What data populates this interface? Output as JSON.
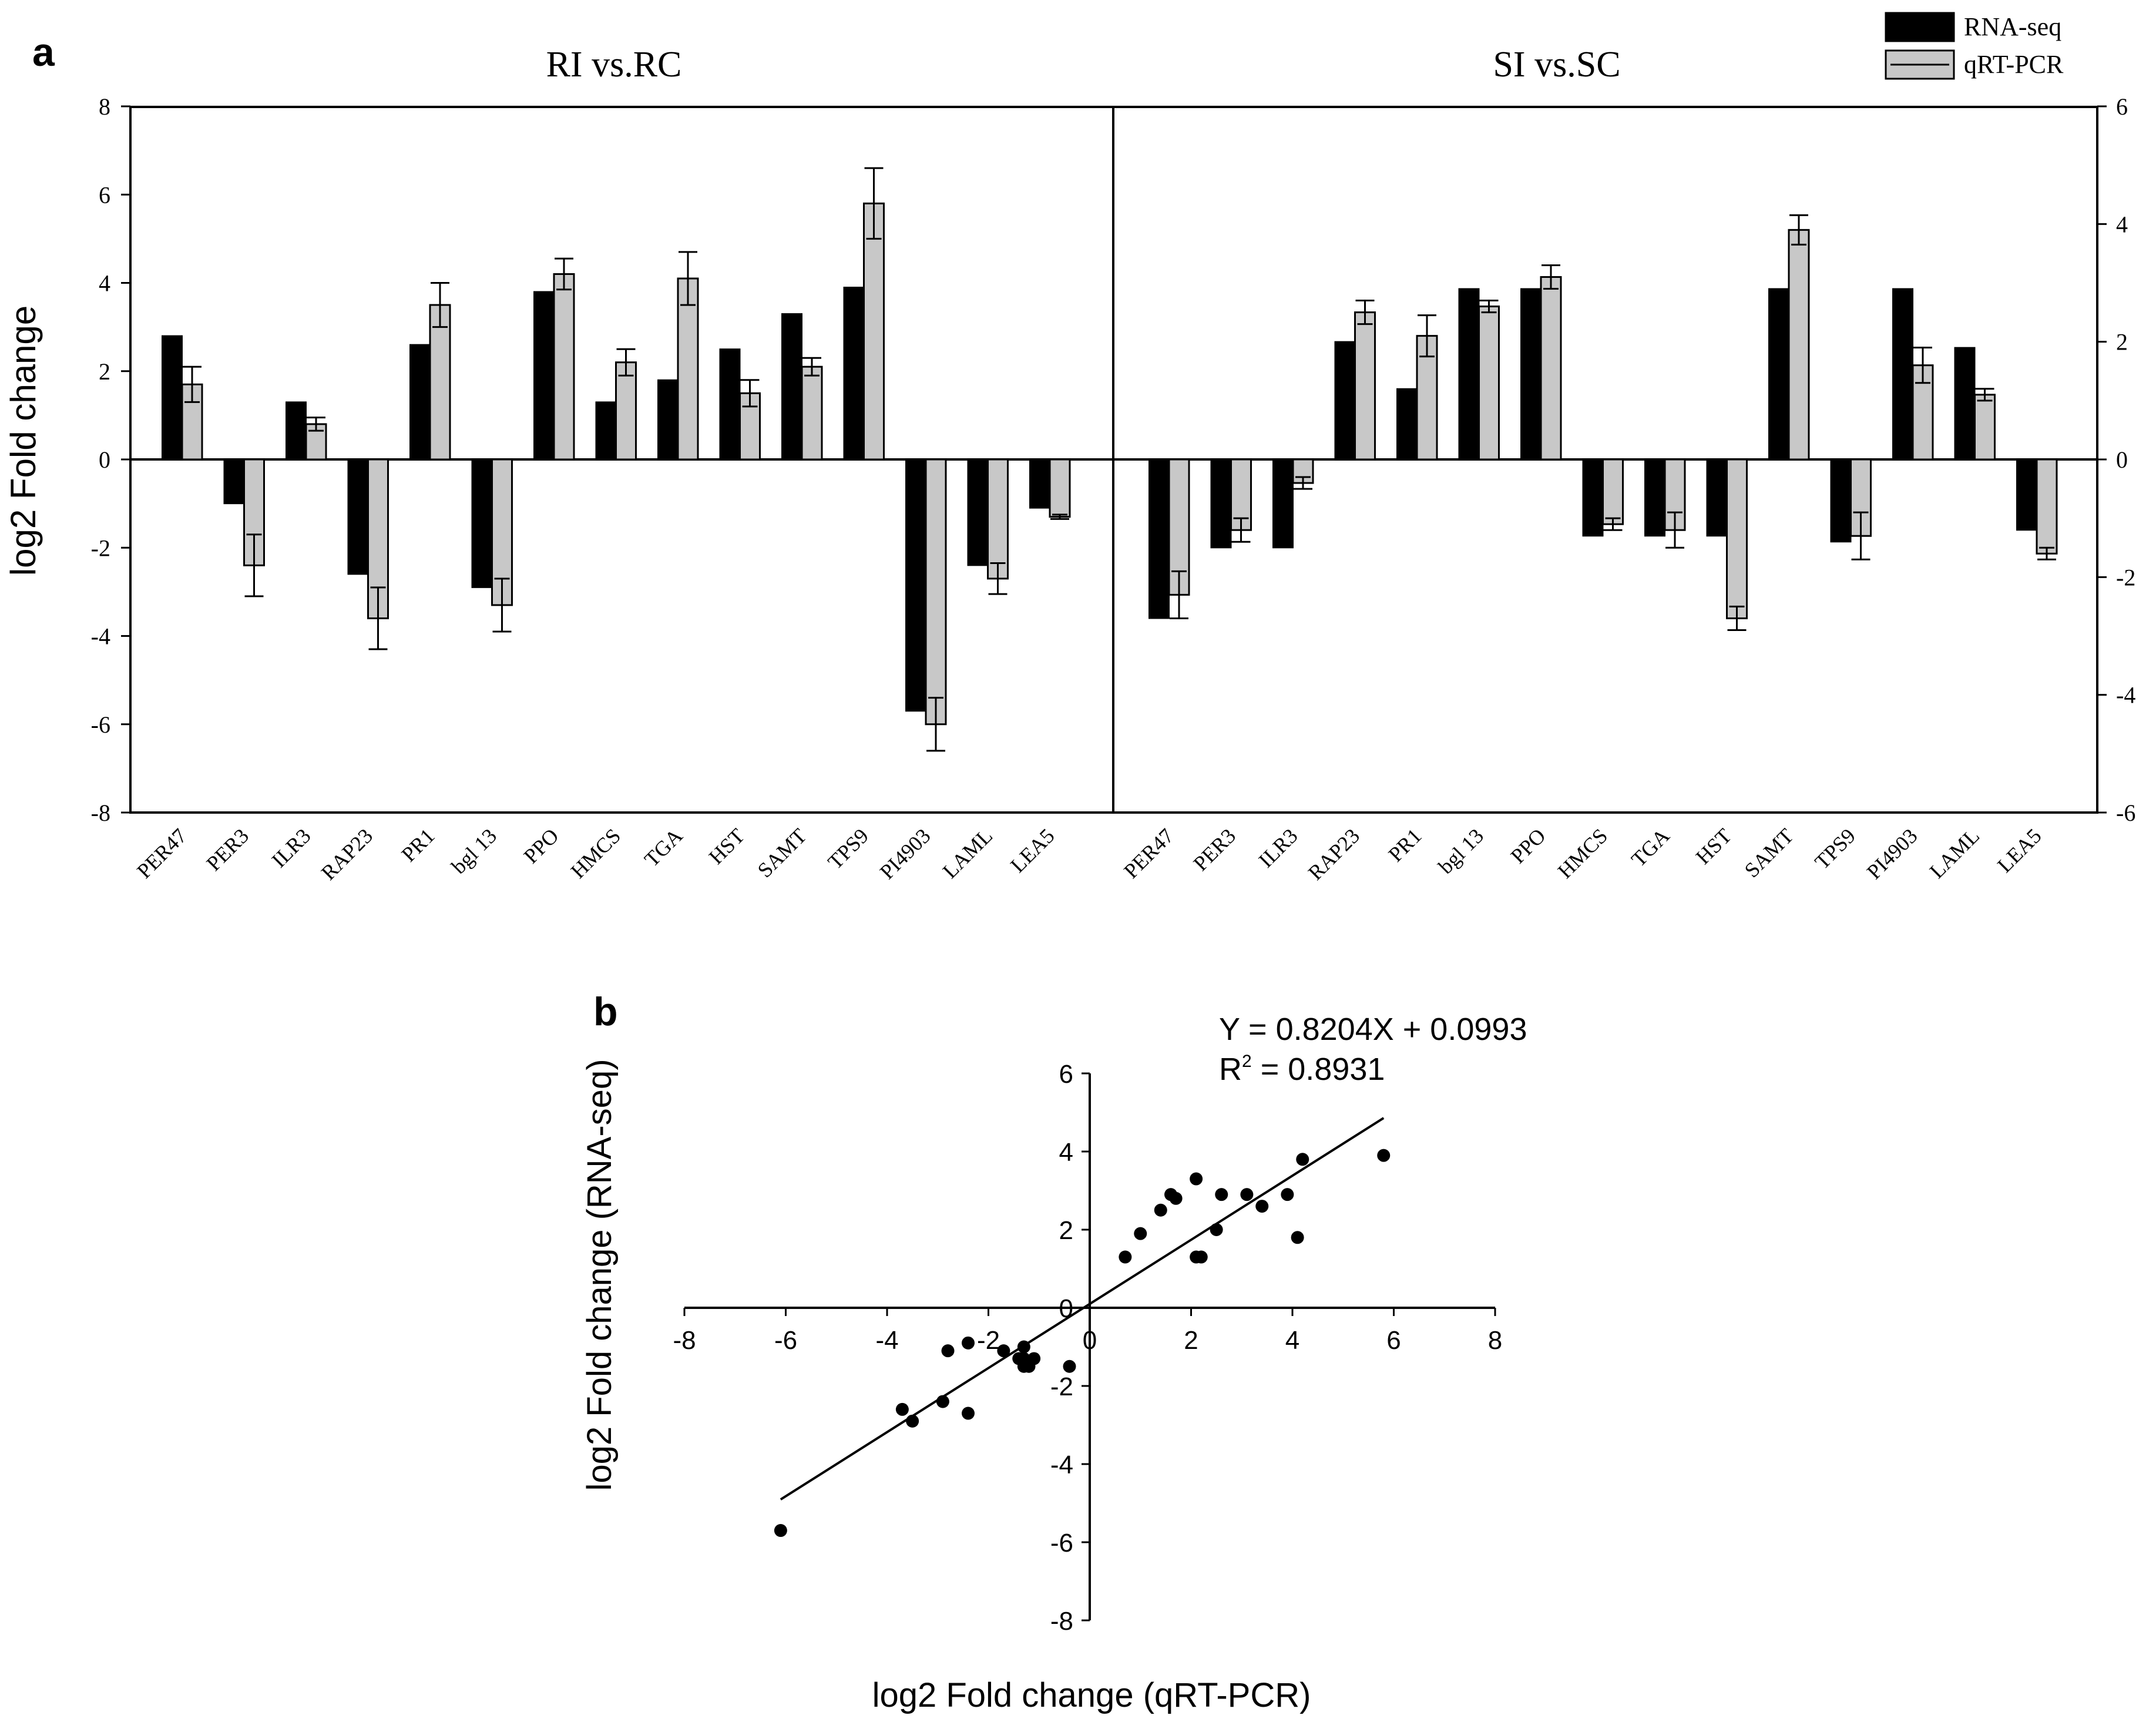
{
  "panel_a": {
    "label": "a",
    "titles": [
      "RI vs.RC",
      "SI vs.SC"
    ],
    "ylabel": "log2 Fold change",
    "legend": [
      {
        "name": "RNA-seq",
        "color": "#000000"
      },
      {
        "name": "qRT-PCR",
        "color": "#c8c8c8"
      }
    ]
  },
  "panel_b": {
    "label": "b",
    "equation": "Y = 0.8204X + 0.0993",
    "r2_label": "R",
    "r2_sup": "2",
    "r2_value": " = 0.8931",
    "xlabel": "log2 Fold change (qRT-PCR)",
    "ylabel": "log2 Fold change (RNA-seq)"
  },
  "chart_data": [
    {
      "type": "bar",
      "title": "RI vs.RC",
      "categories": [
        "PER47",
        "PER3",
        "ILR3",
        "RAP23",
        "PR1",
        "bgl 13",
        "PPO",
        "HMCS",
        "TGA",
        "HST",
        "SAMT",
        "TPS9",
        "PI4903",
        "LAML",
        "LEA5"
      ],
      "ylabel": "log2 Fold change",
      "ylim": [
        -8,
        8
      ],
      "yticks": [
        -8,
        -6,
        -4,
        -2,
        0,
        2,
        4,
        6,
        8
      ],
      "series": [
        {
          "name": "RNA-seq",
          "values": [
            2.8,
            -1.0,
            1.3,
            -2.6,
            2.6,
            -2.9,
            3.8,
            1.3,
            1.8,
            2.5,
            3.3,
            3.9,
            -5.7,
            -2.4,
            -1.1
          ]
        },
        {
          "name": "qRT-PCR",
          "values": [
            1.7,
            -2.4,
            0.8,
            -3.6,
            3.5,
            -3.3,
            4.2,
            2.2,
            4.1,
            1.5,
            2.1,
            5.8,
            -6.0,
            -2.7,
            -1.3
          ],
          "errors": [
            0.4,
            0.7,
            0.15,
            0.7,
            0.5,
            0.6,
            0.35,
            0.3,
            0.6,
            0.3,
            0.2,
            0.8,
            0.6,
            0.35,
            0.05
          ]
        }
      ]
    },
    {
      "type": "bar",
      "title": "SI vs.SC",
      "categories": [
        "PER47",
        "PER3",
        "ILR3",
        "RAP23",
        "PR1",
        "bgl 13",
        "PPO",
        "HMCS",
        "TGA",
        "HST",
        "SAMT",
        "TPS9",
        "PI4903",
        "LAML",
        "LEA5"
      ],
      "ylim": [
        -6,
        6
      ],
      "yticks": [
        -6,
        -4,
        -2,
        0,
        2,
        4,
        6
      ],
      "series": [
        {
          "name": "RNA-seq",
          "values": [
            -2.7,
            -1.5,
            -1.5,
            2.0,
            1.2,
            2.9,
            2.9,
            -1.3,
            -1.3,
            -1.3,
            2.9,
            -1.4,
            2.9,
            1.9,
            -1.2
          ]
        },
        {
          "name": "qRT-PCR",
          "values": [
            -2.3,
            -1.2,
            -0.4,
            2.5,
            2.1,
            2.6,
            3.1,
            -1.1,
            -1.2,
            -2.7,
            3.9,
            -1.3,
            1.6,
            1.1,
            -1.6
          ],
          "errors": [
            0.4,
            0.2,
            0.1,
            0.2,
            0.35,
            0.1,
            0.2,
            0.1,
            0.3,
            0.2,
            0.25,
            0.4,
            0.3,
            0.1,
            0.1
          ]
        }
      ]
    },
    {
      "type": "scatter",
      "xlabel": "log2 Fold change (qRT-PCR)",
      "ylabel": "log2 Fold change (RNA-seq)",
      "xlim": [
        -8,
        8
      ],
      "ylim": [
        -8,
        6
      ],
      "xticks": [
        -8,
        -6,
        -4,
        -2,
        0,
        2,
        4,
        6,
        8
      ],
      "yticks": [
        -8,
        -6,
        -4,
        -2,
        0,
        2,
        4,
        6
      ],
      "fit": {
        "slope": 0.8204,
        "intercept": 0.0993,
        "x_range": [
          -6.1,
          5.8
        ]
      },
      "points": [
        [
          -6.1,
          -5.7
        ],
        [
          -3.7,
          -2.6
        ],
        [
          -3.5,
          -2.9
        ],
        [
          -2.9,
          -2.4
        ],
        [
          -2.8,
          -1.1
        ],
        [
          -2.4,
          -0.9
        ],
        [
          -2.4,
          -2.7
        ],
        [
          -1.7,
          -1.1
        ],
        [
          -1.4,
          -1.3
        ],
        [
          -1.3,
          -1.5
        ],
        [
          -1.3,
          -1.0
        ],
        [
          -1.3,
          -1.3
        ],
        [
          -1.2,
          -1.5
        ],
        [
          -1.1,
          -1.3
        ],
        [
          -0.4,
          -1.5
        ],
        [
          0.7,
          1.3
        ],
        [
          1.0,
          1.9
        ],
        [
          1.4,
          2.5
        ],
        [
          1.6,
          2.9
        ],
        [
          1.7,
          2.8
        ],
        [
          2.1,
          3.3
        ],
        [
          2.1,
          1.3
        ],
        [
          2.2,
          1.3
        ],
        [
          2.5,
          2.0
        ],
        [
          2.6,
          2.9
        ],
        [
          3.1,
          2.9
        ],
        [
          3.4,
          2.6
        ],
        [
          3.9,
          2.9
        ],
        [
          4.1,
          1.8
        ],
        [
          4.2,
          3.8
        ],
        [
          5.8,
          3.9
        ]
      ]
    }
  ]
}
